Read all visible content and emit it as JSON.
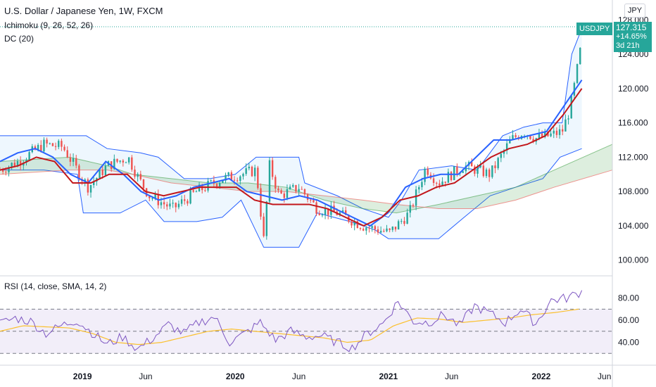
{
  "legend": {
    "title": "U.S. Dollar / Japanese Yen, 1W, FXCM",
    "ichimoku": "Ichimoku (9, 26, 52, 26)",
    "dc": "DC (20)",
    "rsi": "RSI (14, close, SMA, 14, 2)"
  },
  "price_badge": {
    "symbol": "USDJPY",
    "price": "127.315",
    "change": "+14.65%",
    "countdown": "3d 21h",
    "currency": "JPY"
  },
  "colors": {
    "up": "#26a69a",
    "down": "#ef5350",
    "conversion": "#2962ff",
    "base": "#c2171b",
    "donchian": "#2962ff",
    "donchian_fill": "rgba(33,150,243,0.08)",
    "rsi_line": "#7e57c2",
    "rsi_ma": "#fbc02d",
    "rsi_band": "rgba(126,87,194,0.1)",
    "cloud_bull": "rgba(67,160,71,0.18)",
    "cloud_bear": "rgba(244,67,54,0.14)"
  },
  "chart_data": [
    {
      "type": "candlestick",
      "title": "U.S. Dollar / Japanese Yen, 1W, FXCM",
      "y_ticks": [
        "100.000",
        "104.000",
        "108.000",
        "112.000",
        "116.000",
        "120.000",
        "124.000",
        "128.000"
      ],
      "ylim": [
        98.5,
        129.5
      ],
      "x_ticks": [
        "2019",
        "Jun",
        "2020",
        "Jun",
        "2021",
        "Jun",
        "2022",
        "Jun"
      ],
      "x_tick_dates": [
        "2019-01-01",
        "2019-06-01",
        "2020-01-01",
        "2020-06-01",
        "2021-01-01",
        "2021-06-01",
        "2022-01-01",
        "2022-06-01"
      ],
      "xlim": [
        "2018-06-18",
        "2022-06-20"
      ],
      "last_price": 127.315,
      "overlays": [
        "Ichimoku (9, 26, 52, 26)",
        "DC (20)"
      ],
      "series": [
        {
          "name": "USDJPY close (approx.)",
          "dates": [
            "2018-06-18",
            "2018-08-01",
            "2018-10-01",
            "2018-11-15",
            "2019-01-01",
            "2019-01-15",
            "2019-03-01",
            "2019-04-20",
            "2019-05-15",
            "2019-06-10",
            "2019-08-05",
            "2019-10-01",
            "2019-12-01",
            "2020-01-15",
            "2020-02-20",
            "2020-03-09",
            "2020-03-23",
            "2020-04-15",
            "2020-06-01",
            "2020-07-15",
            "2020-09-01",
            "2020-11-01",
            "2021-01-04",
            "2021-02-20",
            "2021-03-31",
            "2021-05-01",
            "2021-06-30",
            "2021-09-01",
            "2021-10-20",
            "2021-11-20",
            "2021-12-20",
            "2022-01-20",
            "2022-02-20",
            "2022-03-10",
            "2022-03-22",
            "2022-04-08"
          ],
          "values": [
            110.5,
            111.5,
            113.5,
            113.2,
            109.5,
            108.5,
            111.0,
            112.0,
            109.5,
            107.5,
            106.0,
            108.0,
            109.5,
            110.0,
            110.5,
            102.4,
            111.0,
            107.5,
            108.5,
            106.0,
            105.5,
            104.0,
            103.2,
            105.5,
            110.8,
            109.0,
            111.0,
            110.0,
            114.0,
            115.0,
            114.2,
            114.5,
            115.0,
            117.5,
            120.5,
            125.5
          ]
        },
        {
          "name": "Conversion line",
          "values": [
            111.5,
            112.5,
            113.0,
            112.0,
            110.0,
            109.0,
            111.5,
            110.0,
            108.0,
            107.0,
            107.5,
            108.5,
            109.0,
            109.5,
            108.0,
            107.5,
            107.0,
            107.5,
            107.0,
            106.0,
            105.0,
            104.0,
            105.5,
            108.5,
            109.5,
            110.0,
            110.0,
            112.0,
            114.0,
            114.0,
            114.5,
            115.0,
            118.0,
            121.0
          ]
        },
        {
          "name": "Base line",
          "values": [
            110.5,
            111.0,
            112.0,
            111.5,
            109.0,
            109.0,
            110.0,
            110.0,
            108.0,
            107.5,
            108.0,
            108.5,
            108.5,
            108.5,
            107.0,
            106.5,
            106.5,
            106.5,
            106.0,
            105.0,
            104.0,
            105.0,
            107.0,
            107.5,
            108.5,
            109.0,
            110.5,
            112.0,
            113.0,
            113.5,
            114.5,
            117.0,
            120.0
          ]
        },
        {
          "name": "RSI",
          "values": [
            57,
            62,
            59,
            48,
            55,
            60,
            49,
            38,
            45,
            34,
            44,
            56,
            48,
            58,
            63,
            40,
            48,
            58,
            42,
            50,
            45,
            46,
            40,
            35,
            48,
            57,
            77,
            59,
            58,
            65,
            55,
            73,
            66,
            58,
            70,
            57,
            78,
            80,
            86
          ]
        },
        {
          "name": "RSI-based MA",
          "values": [
            50,
            55,
            54,
            53,
            48,
            40,
            38,
            40,
            45,
            50,
            52,
            50,
            48,
            46,
            44,
            40,
            42,
            55,
            62,
            61,
            58,
            60,
            62,
            65,
            67,
            70
          ]
        }
      ]
    },
    {
      "type": "line",
      "title": "RSI (14, close, SMA, 14, 2)",
      "y_ticks": [
        "40.00",
        "60.00",
        "80.00"
      ],
      "bands": [
        70,
        50,
        30
      ]
    }
  ]
}
